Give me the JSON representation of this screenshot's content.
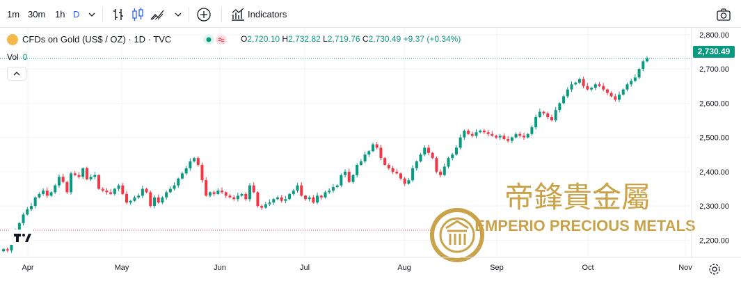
{
  "toolbar": {
    "intervals": [
      "1m",
      "30m",
      "1h",
      "D"
    ],
    "active_interval": "D",
    "indicators_label": "Indicators"
  },
  "legend": {
    "symbol_title": "CFDs on Gold (US$ / OZ) · 1D · TVC",
    "open_label": "O",
    "open": "2,720.10",
    "high_label": "H",
    "high": "2,732.82",
    "low_label": "L",
    "low": "2,719.76",
    "close_label": "C",
    "close": "2,730.49",
    "change": "+9.37 (+0.34%)",
    "volume_label": "Vol",
    "volume_value": "0"
  },
  "watermark": {
    "chinese_text": "帝鋒貴金屬",
    "company": "EMPERIO PRECIOUS METALS"
  },
  "colors": {
    "up": "#089981",
    "down": "#f23645",
    "accent": "#2962ff",
    "gold": "#c9a24a"
  },
  "icons": {
    "logo": "tradingview-logo",
    "settings": "gear-icon",
    "camera": "camera-icon"
  },
  "chart_data": {
    "type": "candlestick",
    "title": "CFDs on Gold (US$ / OZ)",
    "interval": "1D",
    "last_price": "2,730.49",
    "y_ticks": [
      "2,200.00",
      "2,300.00",
      "2,400.00",
      "2,500.00",
      "2,600.00",
      "2,700.00",
      "2,800.00"
    ],
    "x_ticks": [
      "Apr",
      "May",
      "Jun",
      "Jul",
      "Aug",
      "Sep",
      "Oct",
      "Nov"
    ],
    "ylim": [
      2150,
      2820
    ],
    "grid": true,
    "closes": [
      2174,
      2170,
      2190,
      2225,
      2250,
      2275,
      2290,
      2300,
      2325,
      2335,
      2345,
      2330,
      2340,
      2360,
      2385,
      2370,
      2340,
      2395,
      2390,
      2385,
      2410,
      2378,
      2385,
      2390,
      2350,
      2345,
      2340,
      2335,
      2350,
      2360,
      2335,
      2310,
      2315,
      2325,
      2330,
      2350,
      2340,
      2300,
      2325,
      2310,
      2325,
      2340,
      2350,
      2360,
      2380,
      2395,
      2410,
      2430,
      2440,
      2420,
      2375,
      2330,
      2340,
      2335,
      2345,
      2340,
      2330,
      2325,
      2320,
      2330,
      2335,
      2320,
      2360,
      2340,
      2300,
      2295,
      2305,
      2310,
      2320,
      2325,
      2315,
      2320,
      2335,
      2345,
      2360,
      2330,
      2320,
      2325,
      2310,
      2330,
      2325,
      2340,
      2345,
      2355,
      2360,
      2390,
      2400,
      2370,
      2390,
      2420,
      2430,
      2450,
      2460,
      2480,
      2470,
      2440,
      2420,
      2410,
      2400,
      2395,
      2380,
      2365,
      2375,
      2410,
      2430,
      2450,
      2470,
      2455,
      2440,
      2400,
      2390,
      2415,
      2440,
      2450,
      2470,
      2500,
      2520,
      2510,
      2505,
      2515,
      2520,
      2515,
      2510,
      2505,
      2500,
      2505,
      2495,
      2490,
      2500,
      2510,
      2505,
      2500,
      2510,
      2530,
      2560,
      2575,
      2570,
      2560,
      2550,
      2580,
      2600,
      2620,
      2640,
      2655,
      2660,
      2670,
      2650,
      2640,
      2645,
      2655,
      2650,
      2640,
      2630,
      2620,
      2610,
      2625,
      2640,
      2655,
      2665,
      2675,
      2700,
      2722,
      2730.49
    ]
  }
}
